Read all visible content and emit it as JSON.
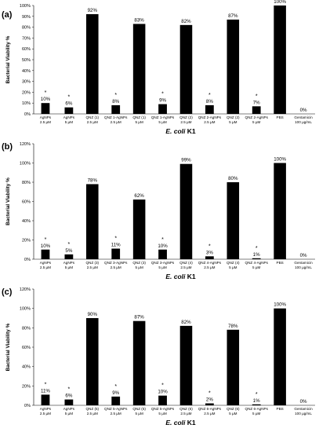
{
  "chart_data": [
    {
      "type": "bar",
      "panel_label": "(a)",
      "ylabel": "Bacterial Viability %",
      "xlabel": {
        "italic": "E. coli",
        "rest": " K1"
      },
      "ylim": [
        0,
        100
      ],
      "yticks": [
        "0%",
        "10%",
        "20%",
        "30%",
        "40%",
        "50%",
        "60%",
        "70%",
        "80%",
        "90%",
        "100%"
      ],
      "categories": [
        [
          "AgNPs",
          "2.5 µM"
        ],
        [
          "AgNPs",
          "5 µM"
        ],
        [
          "QNZ (1)",
          "2.5 µM"
        ],
        [
          "QNZ 1-AgNPs",
          "2.5 µM"
        ],
        [
          "QNZ (1)",
          "5 µM"
        ],
        [
          "QNZ 1-AgNPs",
          "5 µM"
        ],
        [
          "QNZ (2)",
          "2.5 µM"
        ],
        [
          "QNZ 2-AgNPs",
          "2.5 µM"
        ],
        [
          "QNZ (2)",
          "5 µM"
        ],
        [
          "QNZ 2-AgNPs",
          "5 µM"
        ],
        [
          "PBS",
          ""
        ],
        [
          "Gentamicin",
          "100 µg/mL"
        ]
      ],
      "values": [
        10,
        6,
        92,
        8,
        83,
        9,
        82,
        8,
        87,
        7,
        100,
        0
      ],
      "value_labels": [
        "10%",
        "6%",
        "92%",
        "8%",
        "83%",
        "9%",
        "82%",
        "8%",
        "87%",
        "7%",
        "100%",
        "0%"
      ],
      "significant": [
        true,
        true,
        false,
        true,
        false,
        true,
        false,
        true,
        false,
        true,
        false,
        false
      ],
      "significance_mark": "*",
      "bar_color": "#000000",
      "grid": false,
      "legend": "none"
    },
    {
      "type": "bar",
      "panel_label": "(b)",
      "ylabel": "Bacterial Viability %",
      "xlabel": {
        "italic": "E. coli",
        "rest": " K1"
      },
      "ylim": [
        0,
        120
      ],
      "yticks": [
        "0%",
        "20%",
        "40%",
        "60%",
        "80%",
        "100%",
        "120%"
      ],
      "categories": [
        [
          "AgNPs",
          "2.5 µM"
        ],
        [
          "AgNPs",
          "5 µM"
        ],
        [
          "QNZ (3)",
          "2.5 µM"
        ],
        [
          "QNZ 3-AgNPs",
          "2.5 µM"
        ],
        [
          "QNZ (3)",
          "5 µM"
        ],
        [
          "QNZ 3-AgNPs",
          "5 µM"
        ],
        [
          "QNZ (4)",
          "2.5 µM"
        ],
        [
          "QNZ 4-AgNPs",
          "2.5 µM"
        ],
        [
          "QNZ (4)",
          "5 µM"
        ],
        [
          "QNZ 4-AgNPs",
          "5 µM"
        ],
        [
          "PBS",
          ""
        ],
        [
          "Gentamicin",
          "100 µg/mL"
        ]
      ],
      "values": [
        10,
        5,
        78,
        11,
        62,
        10,
        99,
        3,
        80,
        1,
        100,
        0
      ],
      "value_labels": [
        "10%",
        "5%",
        "78%",
        "11%",
        "62%",
        "10%",
        "99%",
        "3%",
        "80%",
        "1%",
        "100%",
        "0%"
      ],
      "significant": [
        true,
        true,
        false,
        true,
        false,
        true,
        false,
        true,
        false,
        true,
        false,
        false
      ],
      "significance_mark": "*",
      "bar_color": "#000000",
      "grid": false,
      "legend": "none"
    },
    {
      "type": "bar",
      "panel_label": "(c)",
      "ylabel": "Bacterial Viability %",
      "xlabel": {
        "italic": "E. coli",
        "rest": " K1"
      },
      "ylim": [
        0,
        120
      ],
      "yticks": [
        "0%",
        "20%",
        "40%",
        "60%",
        "80%",
        "100%",
        "120%"
      ],
      "categories": [
        [
          "AgNPs",
          "2.5 µM"
        ],
        [
          "AgNPs",
          "5 µM"
        ],
        [
          "QNZ (5)",
          "2.5 µM"
        ],
        [
          "QNZ 5-AgNPs",
          "2.5 µM"
        ],
        [
          "QNZ (5)",
          "5 µM"
        ],
        [
          "QNZ 5-AgNPs",
          "5 µM"
        ],
        [
          "QNZ (6)",
          "2.5 µM"
        ],
        [
          "QNZ 6-AgNPs",
          "2.5 µM"
        ],
        [
          "QNZ (6)",
          "5 µM"
        ],
        [
          "QNZ 6-AgNPs",
          "5 µM"
        ],
        [
          "PBS",
          ""
        ],
        [
          "Gentamicin",
          "100 µg/mL"
        ]
      ],
      "values": [
        11,
        6,
        90,
        9,
        87,
        10,
        82,
        2,
        78,
        1,
        100,
        0
      ],
      "value_labels": [
        "11%",
        "6%",
        "90%",
        "9%",
        "87%",
        "10%",
        "82%",
        "2%",
        "78%",
        "1%",
        "100%",
        "0%"
      ],
      "significant": [
        true,
        true,
        false,
        true,
        false,
        true,
        false,
        true,
        false,
        true,
        false,
        false
      ],
      "significance_mark": "*",
      "bar_color": "#000000",
      "grid": false,
      "legend": "none"
    }
  ]
}
